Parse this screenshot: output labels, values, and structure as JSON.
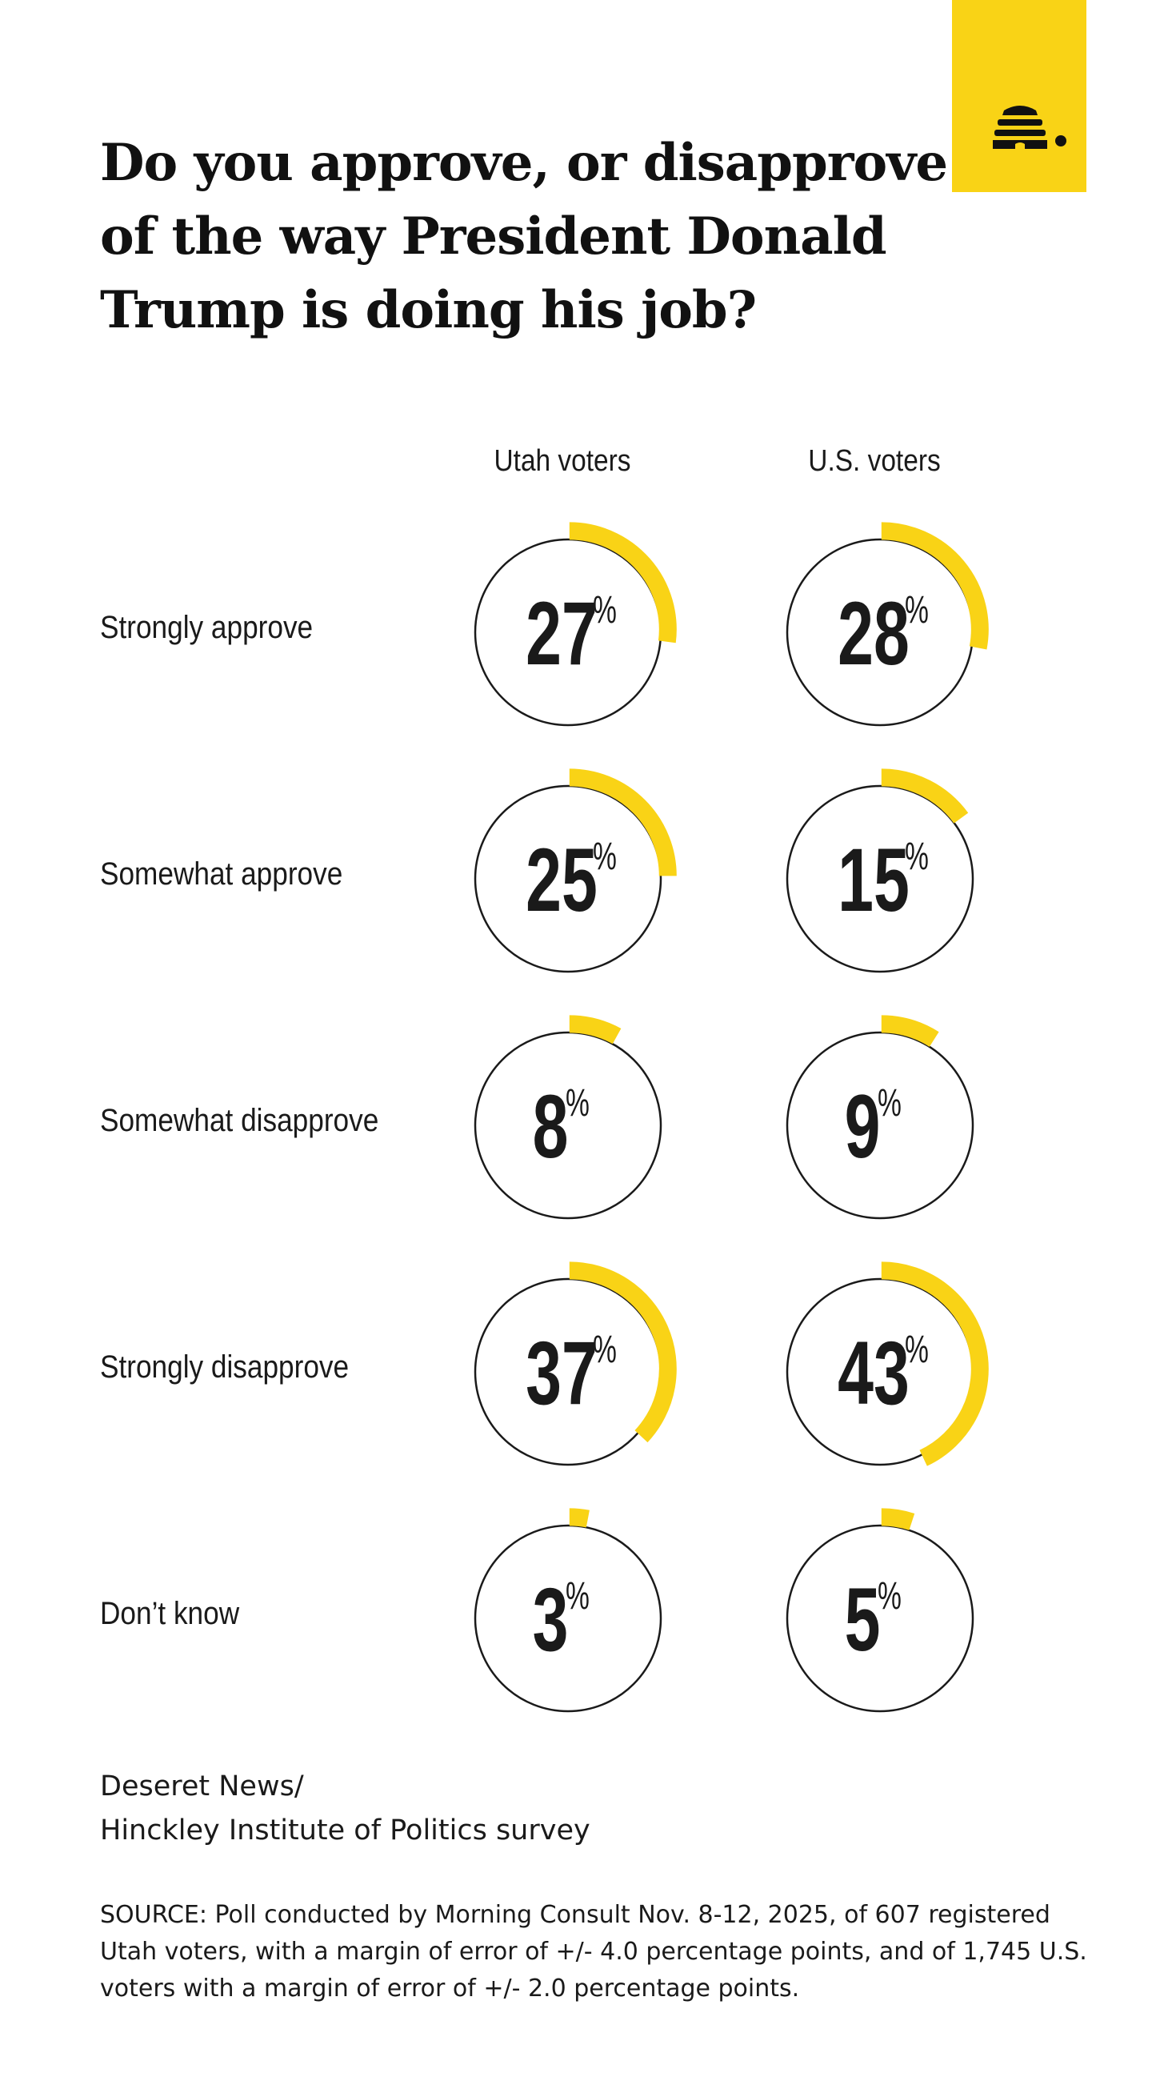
{
  "brand": {
    "logo_icon": "beehive-icon",
    "accent": "#f9d316"
  },
  "title": "Do you approve, or disapprove of the way President Donald Trump is doing his job?",
  "chart_data": {
    "type": "radial-progress",
    "columns": [
      "Utah voters",
      "U.S. voters"
    ],
    "rows": [
      "Strongly approve",
      "Somewhat approve",
      "Somewhat disapprove",
      "Strongly disapprove",
      "Don’t know"
    ],
    "unit": "%",
    "series": [
      {
        "name": "Utah voters",
        "values": [
          27,
          25,
          8,
          37,
          3
        ]
      },
      {
        "name": "U.S. voters",
        "values": [
          28,
          15,
          9,
          43,
          5
        ]
      }
    ],
    "colors": {
      "arc": "#f9d316",
      "ring": "#1a1a1a"
    }
  },
  "source_block": {
    "line1": "Deseret News/",
    "line2": "Hinckley Institute of Politics survey"
  },
  "note": "SOURCE: Poll conducted by Morning Consult Nov. 8-12, 2025, of 607 registered Utah voters, with a margin of error of +/- 4.0 percentage points, and of 1,745 U.S. voters with a margin of error of +/- 2.0 percentage points."
}
